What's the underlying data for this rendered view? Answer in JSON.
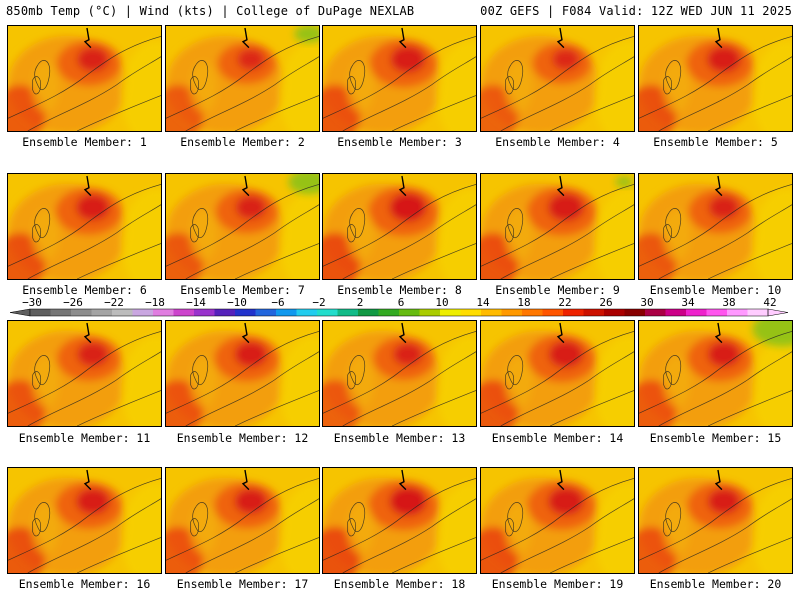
{
  "header": {
    "left": "850mb Temp (°C) | Wind (kts) | College of DuPage NEXLAB",
    "right": "00Z GEFS | F084 Valid: 12Z WED JUN 11 2025"
  },
  "members": [
    {
      "label": "Ensemble Member: 1",
      "hot": 0.65
    },
    {
      "label": "Ensemble Member: 2",
      "hot": 0.45,
      "cool": 0.5
    },
    {
      "label": "Ensemble Member: 3",
      "hot": 0.8
    },
    {
      "label": "Ensemble Member: 4",
      "hot": 0.45
    },
    {
      "label": "Ensemble Member: 5",
      "hot": 0.75
    },
    {
      "label": "Ensemble Member: 6",
      "hot": 0.75
    },
    {
      "label": "Ensemble Member: 7",
      "hot": 0.6,
      "cool": 0.7
    },
    {
      "label": "Ensemble Member: 8",
      "hot": 0.9
    },
    {
      "label": "Ensemble Member: 9",
      "hot": 0.85,
      "cool": 0.3
    },
    {
      "label": "Ensemble Member: 10",
      "hot": 0.6
    },
    {
      "label": "Ensemble Member: 11",
      "hot": 0.65
    },
    {
      "label": "Ensemble Member: 12",
      "hot": 0.7
    },
    {
      "label": "Ensemble Member: 13",
      "hot": 0.55
    },
    {
      "label": "Ensemble Member: 14",
      "hot": 0.8
    },
    {
      "label": "Ensemble Member: 15",
      "hot": 0.7,
      "cool": 1.0
    },
    {
      "label": "Ensemble Member: 16",
      "hot": 0.75
    },
    {
      "label": "Ensemble Member: 17",
      "hot": 0.7
    },
    {
      "label": "Ensemble Member: 18",
      "hot": 0.9
    },
    {
      "label": "Ensemble Member: 19",
      "hot": 0.85
    },
    {
      "label": "Ensemble Member: 20",
      "hot": 0.7
    }
  ],
  "colorbar": {
    "labels": [
      "-30",
      "-26",
      "-22",
      "-18",
      "-14",
      "-10",
      "-6",
      "-2",
      "2",
      "6",
      "10",
      "14",
      "18",
      "22",
      "26",
      "30",
      "34",
      "38",
      "42"
    ],
    "colors": [
      "#5f5f5f",
      "#767676",
      "#8d8d8d",
      "#a4a4a4",
      "#bcbcbc",
      "#c9a6e0",
      "#e07de0",
      "#cc44cc",
      "#9933cc",
      "#5522bb",
      "#2233cc",
      "#2266dd",
      "#1199ee",
      "#22ccee",
      "#22ddcc",
      "#11bb88",
      "#119944",
      "#33aa22",
      "#66bb11",
      "#aacc00",
      "#eeee00",
      "#ffdd00",
      "#ffbb00",
      "#ff9900",
      "#ff7700",
      "#ff5500",
      "#ee2200",
      "#cc1100",
      "#aa0000",
      "#880000",
      "#aa0044",
      "#cc0088",
      "#ee22cc",
      "#ff55ee",
      "#ff99ff",
      "#ffccff"
    ]
  }
}
